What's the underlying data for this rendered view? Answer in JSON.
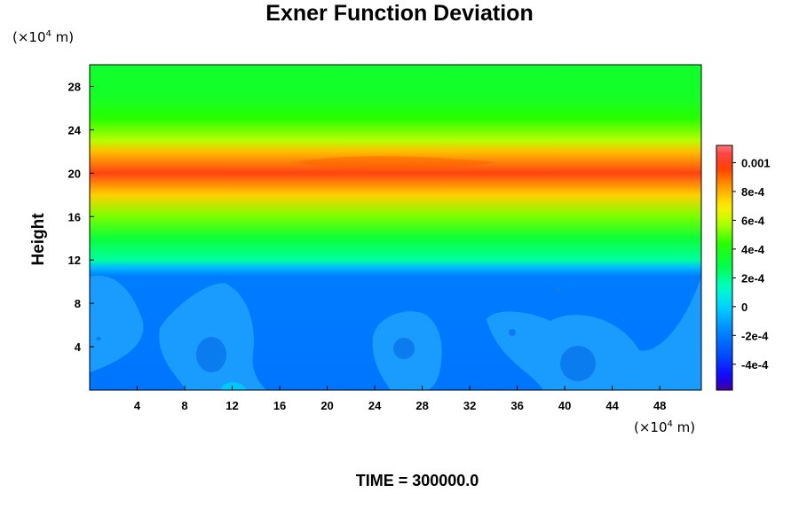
{
  "chart_data": {
    "type": "heatmap",
    "title": "Exner Function Deviation",
    "ylabel": "Height",
    "y_unit_label": "(×10",
    "y_unit_exp": "4",
    "y_unit_tail": " m)",
    "x_unit_label": "(×10",
    "x_unit_exp": "4",
    "x_unit_tail": " m)",
    "footer": "TIME = 300000.0",
    "xlim": [
      0,
      51.5
    ],
    "ylim": [
      0,
      30
    ],
    "x_ticks": [
      4,
      8,
      12,
      16,
      20,
      24,
      28,
      32,
      36,
      40,
      44,
      48
    ],
    "y_ticks": [
      4,
      8,
      12,
      16,
      20,
      24,
      28
    ],
    "colorbar": {
      "range": [
        -0.00058,
        0.00112
      ],
      "ticks": [
        {
          "value": 0.001,
          "label": "0.001"
        },
        {
          "value": 0.0008,
          "label": "8e-4"
        },
        {
          "value": 0.0006,
          "label": "6e-4"
        },
        {
          "value": 0.0004,
          "label": "4e-4"
        },
        {
          "value": 0.0002,
          "label": "2e-4"
        },
        {
          "value": 0.0,
          "label": "0"
        },
        {
          "value": -0.0002,
          "label": "-2e-4"
        },
        {
          "value": -0.0004,
          "label": "-4e-4"
        }
      ]
    },
    "field_description_profile": [
      {
        "height": 0,
        "value": -0.00022
      },
      {
        "height": 10.5,
        "value": -0.0002
      },
      {
        "height": 11.3,
        "value": -5e-05
      },
      {
        "height": 12,
        "value": 0.00018
      },
      {
        "height": 14,
        "value": 0.00032
      },
      {
        "height": 16,
        "value": 0.00052
      },
      {
        "height": 18,
        "value": 0.00075
      },
      {
        "height": 20,
        "value": 0.00098
      },
      {
        "height": 22,
        "value": 0.00078
      },
      {
        "height": 23,
        "value": 0.00058
      },
      {
        "height": 25,
        "value": 0.00044
      },
      {
        "height": 27,
        "value": 0.00036
      },
      {
        "height": 30,
        "value": 0.00034
      }
    ]
  }
}
